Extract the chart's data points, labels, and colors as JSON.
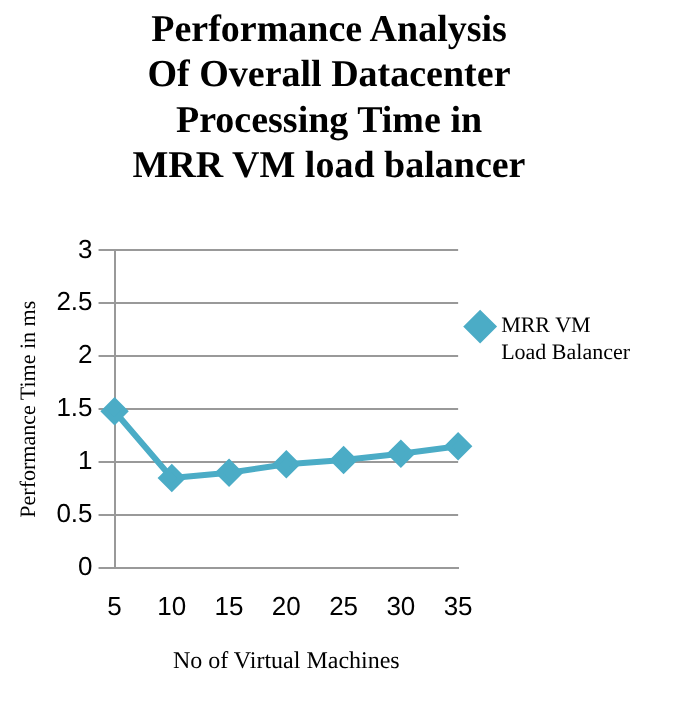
{
  "chart_data": {
    "type": "line",
    "title": "Performance Analysis Of Overall Datacenter Processing Time in MRR VM load balancer",
    "xlabel": "No of Virtual Machines",
    "ylabel": "Performance Time in ms",
    "categories": [
      "5",
      "10",
      "15",
      "20",
      "25",
      "30",
      "35"
    ],
    "series": [
      {
        "name": "MRR VM Load Balancer",
        "color": "#4bacc6",
        "values": [
          1.48,
          0.85,
          0.9,
          0.98,
          1.02,
          1.08,
          1.15
        ]
      }
    ],
    "ylim": [
      0,
      3
    ],
    "yticks": [
      0,
      0.5,
      1,
      1.5,
      2,
      2.5,
      3
    ],
    "grid": "y",
    "legend": "right",
    "marker": "diamond"
  }
}
